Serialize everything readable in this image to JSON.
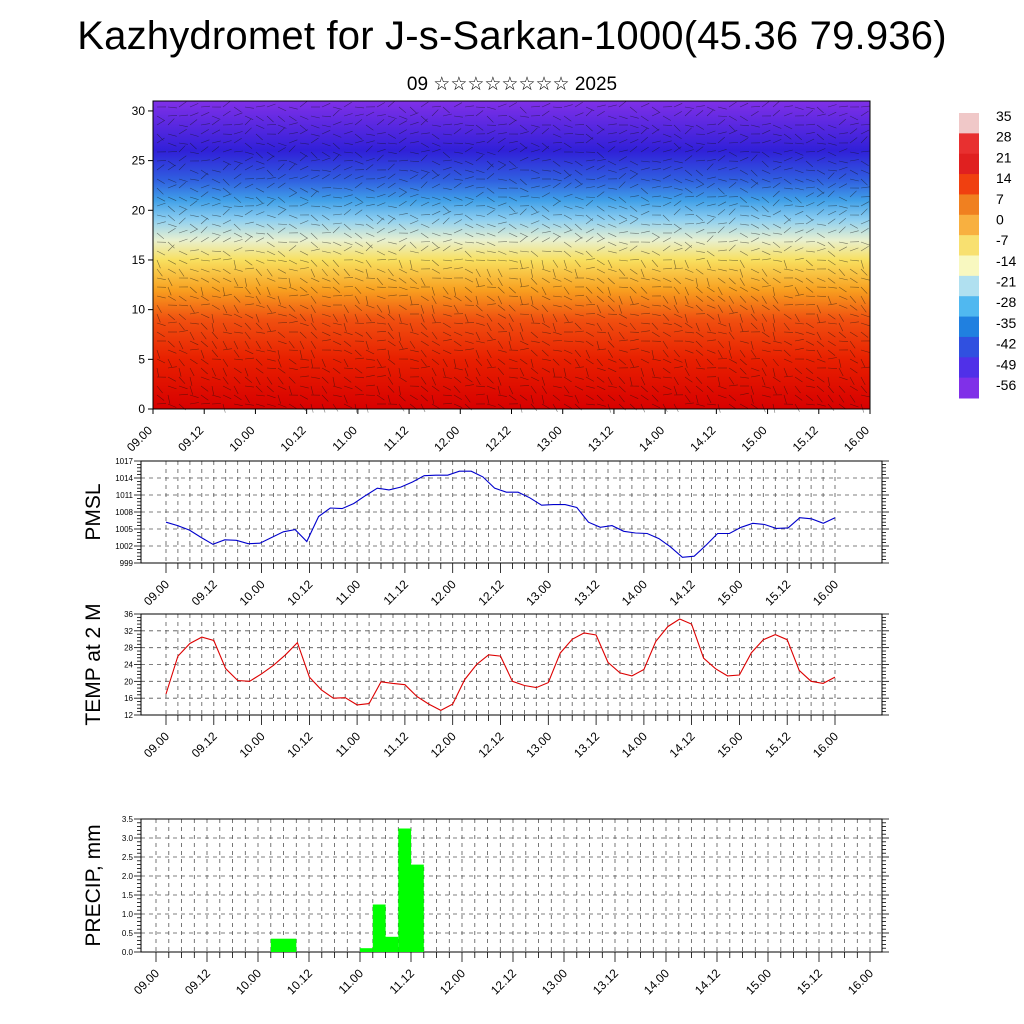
{
  "title": "Kazhydromet for J-s-Sarkan-1000(45.36 79.936)",
  "subtitle": "09 ☆☆☆☆☆☆☆☆ 2025",
  "colorbar": {
    "labels": [
      "35",
      "28",
      "21",
      "14",
      "7",
      "0",
      "-7",
      "-14",
      "-21",
      "-28",
      "-35",
      "-42",
      "-49",
      "-56"
    ],
    "colors": [
      "#f0c8c8",
      "#e83030",
      "#e02020",
      "#f04010",
      "#f08020",
      "#f8b040",
      "#f8e070",
      "#f8f8c0",
      "#b0e0f0",
      "#50b8f0",
      "#2080e0",
      "#3050e0",
      "#5030e8",
      "#8030e8"
    ]
  },
  "chart_data": [
    {
      "type": "heatmap",
      "name": "cross-section",
      "x_tick_labels": [
        "09.00",
        "09.12",
        "10.00",
        "10.12",
        "11.00",
        "11.12",
        "12.00",
        "12.12",
        "13.00",
        "13.12",
        "14.00",
        "14.12",
        "15.00",
        "15.12",
        "16.00"
      ],
      "y_tick_labels": [
        "0",
        "5",
        "10",
        "15",
        "20",
        "25",
        "30"
      ],
      "ylim": [
        0,
        31
      ],
      "color_stops": [
        {
          "y": 0,
          "color": "#d80000"
        },
        {
          "y": 5,
          "color": "#e82000"
        },
        {
          "y": 9,
          "color": "#f05010"
        },
        {
          "y": 12,
          "color": "#f8a020"
        },
        {
          "y": 15,
          "color": "#f8e060"
        },
        {
          "y": 17,
          "color": "#e8f0d0"
        },
        {
          "y": 19,
          "color": "#90d0f0"
        },
        {
          "y": 21,
          "color": "#40a0e8"
        },
        {
          "y": 23,
          "color": "#3060e0"
        },
        {
          "y": 26,
          "color": "#3020d8"
        },
        {
          "y": 31,
          "color": "#8030e8"
        }
      ]
    },
    {
      "type": "line",
      "ylabel": "PMSL",
      "ylim": [
        999,
        1017
      ],
      "y_ticks": [
        "999",
        "1002",
        "1005",
        "1008",
        "1011",
        "1014",
        "1017"
      ],
      "x_tick_labels": [
        "09.00",
        "09.12",
        "10.00",
        "10.12",
        "11.00",
        "11.12",
        "12.00",
        "12.12",
        "13.00",
        "13.12",
        "14.00",
        "14.12",
        "15.00",
        "15.12",
        "16.00"
      ],
      "color": "#0000cc",
      "values": [
        1006.2,
        1005.6,
        1004.8,
        1003.5,
        1002.3,
        1003.1,
        1003.0,
        1002.4,
        1002.5,
        1003.5,
        1004.5,
        1004.9,
        1002.8,
        1007.2,
        1008.7,
        1008.6,
        1009.5,
        1010.9,
        1012.2,
        1011.9,
        1012.4,
        1013.3,
        1014.4,
        1014.5,
        1014.5,
        1015.2,
        1015.2,
        1014.2,
        1012.2,
        1011.5,
        1011.5,
        1010.5,
        1009.2,
        1009.3,
        1009.3,
        1008.8,
        1006.2,
        1005.3,
        1005.6,
        1004.6,
        1004.3,
        1004.2,
        1003.3,
        1001.8,
        1000.0,
        1000.2,
        1002.1,
        1004.2,
        1004.2,
        1005.3,
        1006.0,
        1005.8,
        1005.1,
        1005.2,
        1007.0,
        1006.8,
        1006.0,
        1007.0
      ]
    },
    {
      "type": "line",
      "ylabel": "TEMP at 2 M",
      "ylim": [
        12,
        36
      ],
      "y_ticks": [
        "12",
        "16",
        "20",
        "24",
        "28",
        "32",
        "36"
      ],
      "x_tick_labels": [
        "09.00",
        "09.12",
        "10.00",
        "10.12",
        "11.00",
        "11.12",
        "12.00",
        "12.12",
        "13.00",
        "13.12",
        "14.00",
        "14.12",
        "15.00",
        "15.12",
        "16.00"
      ],
      "color": "#dd0000",
      "values": [
        17.0,
        26.0,
        29.0,
        30.5,
        29.7,
        23.0,
        20.2,
        20.0,
        21.8,
        23.8,
        26.3,
        29.2,
        21.0,
        18.0,
        16.0,
        16.1,
        14.4,
        14.7,
        19.9,
        19.5,
        19.2,
        16.4,
        14.6,
        13.1,
        14.6,
        20.4,
        24.0,
        26.3,
        26.0,
        20.0,
        19.0,
        18.5,
        19.7,
        26.7,
        30.0,
        31.5,
        31.0,
        24.5,
        22.0,
        21.3,
        22.8,
        29.5,
        33.0,
        34.8,
        33.6,
        25.5,
        23.0,
        21.3,
        21.5,
        26.8,
        29.9,
        31.1,
        29.9,
        22.6,
        20.0,
        19.5,
        21.0
      ]
    },
    {
      "type": "bar",
      "ylabel": "PRECIP, mm",
      "ylim": [
        0,
        3.5
      ],
      "y_ticks": [
        "0.0",
        "0.5",
        "1.0",
        "1.5",
        "2.0",
        "2.5",
        "3.0",
        "3.5"
      ],
      "x_tick_labels": [
        "09.00",
        "09.12",
        "10.00",
        "10.12",
        "11.00",
        "11.12",
        "12.00",
        "12.12",
        "13.00",
        "13.12",
        "14.00",
        "14.12",
        "15.00",
        "15.12",
        "16.00"
      ],
      "color": "#00ff00",
      "bars": [
        {
          "x": 10.125,
          "value": 0.35
        },
        {
          "x": 10.25,
          "value": 0.35
        },
        {
          "x": 11.0,
          "value": 0.1
        },
        {
          "x": 11.125,
          "value": 1.25
        },
        {
          "x": 11.25,
          "value": 0.4
        },
        {
          "x": 11.375,
          "value": 3.25
        },
        {
          "x": 11.5,
          "value": 2.3
        }
      ]
    }
  ]
}
